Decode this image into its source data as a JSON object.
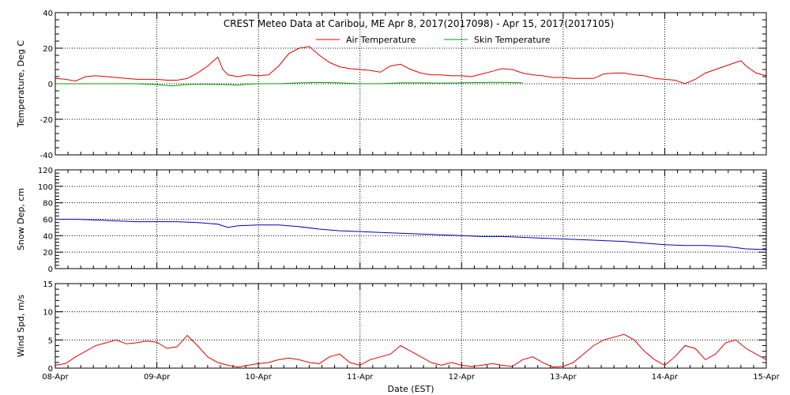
{
  "chart_data": {
    "title": "CREST Meteo Data at Caribou, ME   Apr  8, 2017(2017098) - Apr 15, 2017(2017105)",
    "type": "line",
    "x_axis": {
      "label": "Date (EST)",
      "range_days": [
        0,
        7
      ],
      "ticks": [
        {
          "day": 0,
          "label": "08-Apr"
        },
        {
          "day": 1,
          "label": "09-Apr"
        },
        {
          "day": 2,
          "label": "10-Apr"
        },
        {
          "day": 3,
          "label": "11-Apr"
        },
        {
          "day": 4,
          "label": "12-Apr"
        },
        {
          "day": 5,
          "label": "13-Apr"
        },
        {
          "day": 6,
          "label": "14-Apr"
        },
        {
          "day": 7,
          "label": "15-Apr"
        }
      ]
    },
    "panels": [
      {
        "id": "temperature",
        "ylabel": "Temperature, Deg C",
        "ylim": [
          -40,
          40
        ],
        "yticks": [
          -40,
          -20,
          0,
          20,
          40
        ],
        "grid": true,
        "legend": {
          "placement": "top-center",
          "entries": [
            "Air Temperature",
            "Skin Temperature"
          ]
        },
        "series": [
          {
            "name": "Air Temperature",
            "color": "#e00000",
            "x": [
              0,
              0.1,
              0.2,
              0.3,
              0.4,
              0.5,
              0.6,
              0.7,
              0.8,
              0.9,
              1.0,
              1.1,
              1.2,
              1.3,
              1.4,
              1.5,
              1.6,
              1.65,
              1.7,
              1.8,
              1.9,
              2.0,
              2.1,
              2.2,
              2.3,
              2.4,
              2.5,
              2.6,
              2.7,
              2.8,
              2.9,
              3.0,
              3.1,
              3.2,
              3.3,
              3.4,
              3.5,
              3.6,
              3.7,
              3.8,
              3.9,
              4.0,
              4.1,
              4.2,
              4.3,
              4.4,
              4.5,
              4.6,
              4.7,
              4.8,
              4.9,
              5.0,
              5.1,
              5.2,
              5.3,
              5.4,
              5.5,
              5.6,
              5.7,
              5.8,
              5.9,
              6.0,
              6.1,
              6.2,
              6.3,
              6.4,
              6.5,
              6.6,
              6.7,
              6.75,
              6.8,
              6.9,
              7.0
            ],
            "y": [
              3,
              2.5,
              1.5,
              4,
              4.5,
              4,
              3.5,
              3,
              2.5,
              2.5,
              2.5,
              2,
              2,
              3,
              6,
              10,
              15,
              8,
              5,
              4,
              5,
              4.5,
              5,
              10,
              17,
              20,
              21,
              16,
              12,
              9.5,
              8.5,
              8,
              7.5,
              6.5,
              10,
              11,
              8,
              6,
              5,
              5,
              4.5,
              4.5,
              4,
              5.5,
              7,
              8.5,
              8,
              6,
              5,
              4.5,
              3.5,
              3.5,
              3,
              3,
              3,
              5.5,
              6,
              6,
              5,
              4.5,
              3,
              2.5,
              2,
              0,
              2.5,
              6,
              8,
              10,
              12,
              13,
              10,
              6,
              4.5
            ]
          },
          {
            "name": "Skin Temperature",
            "color": "#00a000",
            "x": [
              0,
              0.2,
              0.4,
              0.6,
              0.8,
              1.0,
              1.15,
              1.3,
              1.5,
              1.7,
              1.8,
              1.9,
              2.0,
              2.2,
              2.4,
              2.6,
              2.8,
              3.0,
              3.2,
              3.4,
              3.6,
              3.8,
              4.0,
              4.2,
              4.4,
              4.6
            ],
            "y": [
              0,
              0,
              0,
              0,
              0,
              -0.5,
              -1.2,
              -0.4,
              -0.3,
              -0.5,
              -0.8,
              -0.2,
              0,
              0,
              0.5,
              0.8,
              0.5,
              0,
              0,
              0.5,
              0.5,
              0.3,
              0.5,
              0.7,
              0.8,
              0.5
            ]
          }
        ]
      },
      {
        "id": "snow",
        "ylabel": "Snow Dep, cm",
        "ylim": [
          0,
          120
        ],
        "yticks": [
          0,
          20,
          40,
          60,
          80,
          100,
          120
        ],
        "grid": true,
        "series": [
          {
            "name": "",
            "color": "#0000c0",
            "x": [
              0,
              0.2,
              0.4,
              0.6,
              0.8,
              1.0,
              1.2,
              1.4,
              1.6,
              1.7,
              1.8,
              2.0,
              2.2,
              2.4,
              2.6,
              2.8,
              3.0,
              3.2,
              3.4,
              3.6,
              3.8,
              4.0,
              4.2,
              4.4,
              4.6,
              4.8,
              5.0,
              5.2,
              5.4,
              5.6,
              5.8,
              6.0,
              6.2,
              6.4,
              6.6,
              6.8,
              7.0
            ],
            "y": [
              60,
              60,
              59,
              58,
              57,
              57,
              57,
              56,
              54,
              50,
              52,
              53,
              53,
              51,
              48,
              46,
              45,
              44,
              43,
              42,
              41,
              40,
              39,
              39,
              38,
              37,
              36,
              35,
              34,
              33,
              31,
              29,
              28,
              28,
              27,
              24,
              23
            ]
          }
        ]
      },
      {
        "id": "wind",
        "ylabel": "Wind Spd, m/s",
        "ylim": [
          0,
          15
        ],
        "yticks": [
          0,
          5,
          10,
          15
        ],
        "grid": true,
        "series": [
          {
            "name": "",
            "color": "#e00000",
            "x": [
              0,
              0.1,
              0.2,
              0.3,
              0.4,
              0.5,
              0.6,
              0.7,
              0.8,
              0.9,
              1.0,
              1.1,
              1.2,
              1.3,
              1.4,
              1.5,
              1.6,
              1.7,
              1.8,
              1.9,
              2.0,
              2.1,
              2.2,
              2.3,
              2.4,
              2.5,
              2.6,
              2.7,
              2.8,
              2.9,
              3.0,
              3.1,
              3.2,
              3.3,
              3.4,
              3.5,
              3.6,
              3.7,
              3.8,
              3.9,
              4.0,
              4.1,
              4.2,
              4.3,
              4.4,
              4.5,
              4.6,
              4.7,
              4.8,
              4.9,
              5.0,
              5.1,
              5.2,
              5.3,
              5.4,
              5.5,
              5.6,
              5.7,
              5.8,
              5.9,
              6.0,
              6.1,
              6.2,
              6.3,
              6.4,
              6.5,
              6.6,
              6.7,
              6.8,
              6.9,
              7.0
            ],
            "y": [
              0.5,
              0.8,
              2,
              3,
              4,
              4.5,
              5,
              4.3,
              4.5,
              4.8,
              4.6,
              3.5,
              3.8,
              5.8,
              4,
              2,
              1,
              0.5,
              0.2,
              0.5,
              0.8,
              1,
              1.5,
              1.8,
              1.5,
              1,
              0.8,
              2,
              2.5,
              1,
              0.5,
              1.5,
              2,
              2.5,
              4,
              3,
              2,
              1,
              0.5,
              1,
              0.5,
              0.3,
              0.5,
              0.8,
              0.5,
              0.3,
              1.5,
              2,
              1,
              0.2,
              0.3,
              1,
              2.5,
              4,
              5,
              5.5,
              6,
              5,
              3,
              1.5,
              0.5,
              2,
              4,
              3.5,
              1.5,
              2.5,
              4.5,
              5,
              3.5,
              2.5,
              1.5
            ]
          }
        ]
      }
    ]
  }
}
